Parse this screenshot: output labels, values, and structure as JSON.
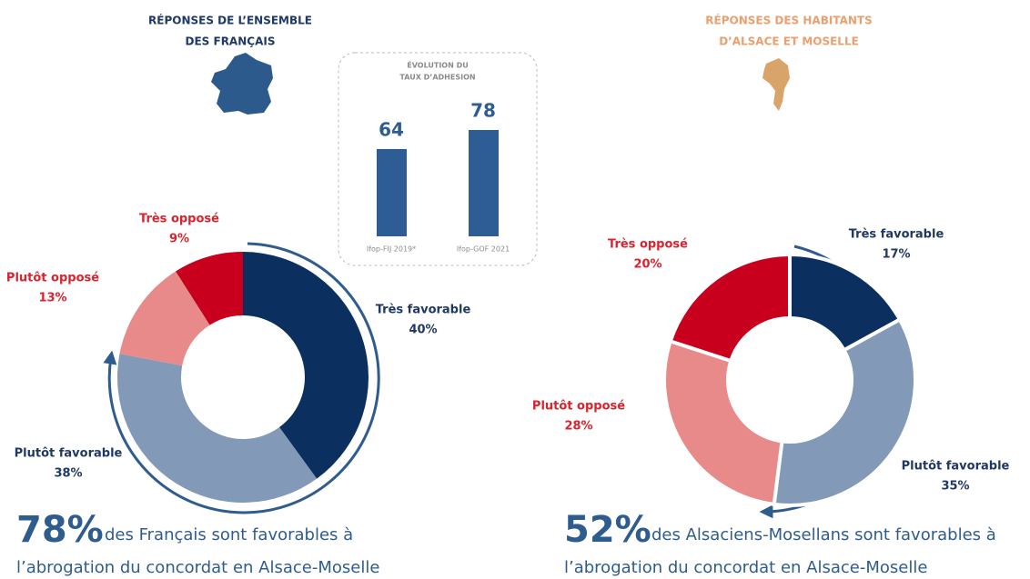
{
  "chart_data": [
    {
      "type": "pie",
      "title": [
        "RÉPONSES DE L’ENSEMBLE",
        "DES FRANÇAIS"
      ],
      "categories": [
        "Très favorable",
        "Plutôt favorable",
        "Plutôt opposé",
        "Très opposé"
      ],
      "values": [
        40,
        38,
        13,
        9
      ],
      "value_labels": [
        "40%",
        "38%",
        "13%",
        "9%"
      ],
      "colors": [
        "#0b2f5e",
        "#8399b8",
        "#e88a8a",
        "#c8001e"
      ],
      "headline": "78%",
      "caption": [
        "des Français sont favorables à",
        "l’abrogation du concordat en Alsace-Moselle"
      ]
    },
    {
      "type": "bar",
      "title": [
        "ÉVOLUTION DU",
        "TAUX D’ADHESION"
      ],
      "categories": [
        "Ifop-FIJ 2019*",
        "Ifop-GOF 2021"
      ],
      "values": [
        64,
        78
      ],
      "color": "#2e5d96"
    },
    {
      "type": "pie",
      "title": [
        "RÉPONSES DES HABITANTS",
        "D’ALSACE ET MOSELLE"
      ],
      "categories": [
        "Très favorable",
        "Plutôt favorable",
        "Plutôt opposé",
        "Très opposé"
      ],
      "values": [
        17,
        35,
        28,
        20
      ],
      "value_labels": [
        "17%",
        "35%",
        "28%",
        "20%"
      ],
      "colors": [
        "#0b2f5e",
        "#8399b8",
        "#e88a8a",
        "#c8001e"
      ],
      "headline": "52%",
      "caption": [
        "des Alsaciens-Mosellans sont favorables à",
        "l’abrogation du concordat en Alsace-Moselle"
      ]
    }
  ]
}
